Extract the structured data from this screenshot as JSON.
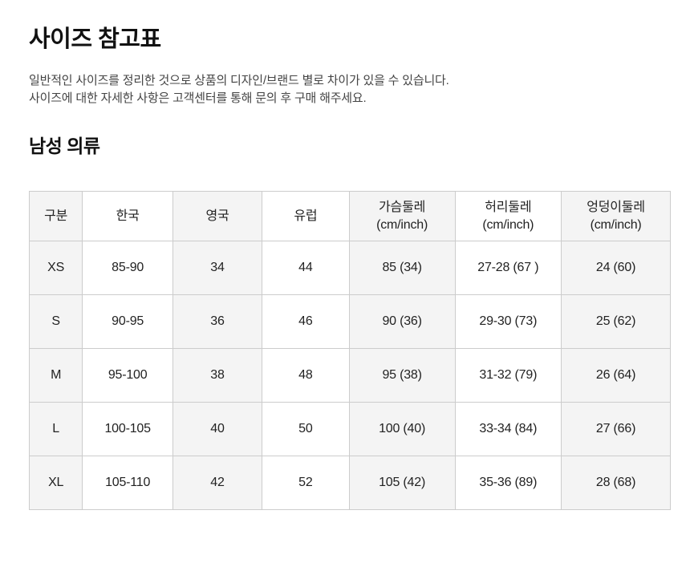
{
  "page": {
    "title": "사이즈 참고표",
    "description_lines": [
      "일반적인 사이즈를 정리한 것으로 상품의 디자인/브랜드 별로 차이가 있을 수 있습니다.",
      "사이즈에 대한 자세한 사항은 고객센터를 통해 문의 후 구매 해주세요."
    ],
    "section_title": "남성 의류"
  },
  "size_table": {
    "columns": [
      "구분",
      "한국",
      "영국",
      "유럽",
      "가슴둘레\n(cm/inch)",
      "허리둘레\n(cm/inch)",
      "엉덩이둘레\n(cm/inch)"
    ],
    "rows": [
      [
        "XS",
        "85-90",
        "34",
        "44",
        "85 (34)",
        "27-28 (67 )",
        "24 (60)"
      ],
      [
        "S",
        "90-95",
        "36",
        "46",
        "90 (36)",
        "29-30 (73)",
        "25 (62)"
      ],
      [
        "M",
        "95-100",
        "38",
        "48",
        "95 (38)",
        "31-32 (79)",
        "26 (64)"
      ],
      [
        "L",
        "100-105",
        "40",
        "50",
        "100 (40)",
        "33-34 (84)",
        "27 (66)"
      ],
      [
        "XL",
        "105-110",
        "42",
        "52",
        "105 (42)",
        "35-36 (89)",
        "28 (68)"
      ]
    ]
  },
  "colors": {
    "stripe_bg": "#f4f4f4",
    "border": "#cccccc",
    "text_primary": "#111111",
    "text_secondary": "#444444"
  }
}
